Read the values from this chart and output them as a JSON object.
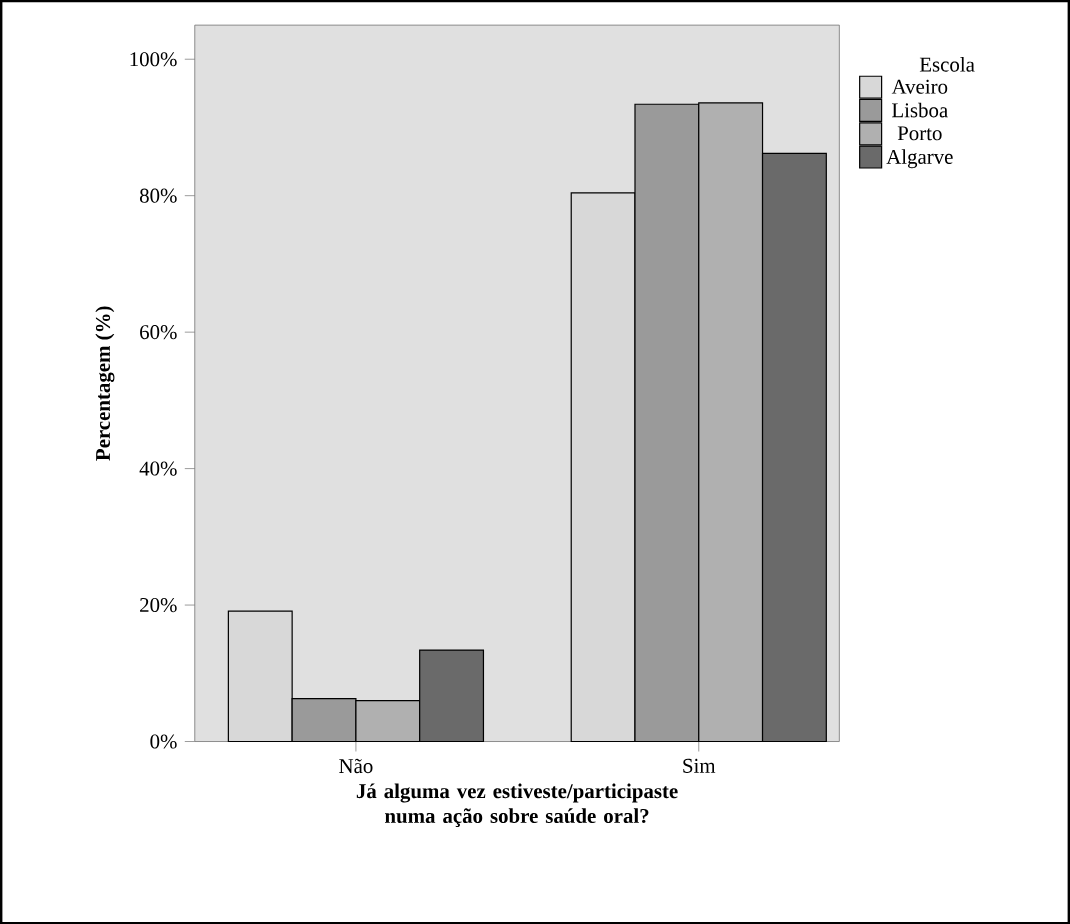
{
  "chart_data": {
    "type": "bar",
    "xlabel": "Já alguma vez estiveste/participaste numa ação sobre saúde oral?",
    "ylabel": "Percentagem (%)",
    "legend_title": "Escola",
    "categories": [
      "Não",
      "Sim"
    ],
    "series": [
      {
        "name": "Aveiro",
        "color": "#d8d8d8",
        "values": [
          19.1,
          80.4
        ]
      },
      {
        "name": "Lisboa",
        "color": "#9a9a9a",
        "values": [
          6.3,
          93.4
        ]
      },
      {
        "name": "Porto",
        "color": "#b0b0b0",
        "values": [
          6.0,
          93.6
        ]
      },
      {
        "name": "Algarve",
        "color": "#6a6a6a",
        "values": [
          13.4,
          86.2
        ]
      }
    ],
    "ylim": [
      0,
      105
    ],
    "yticks": [
      {
        "value": 0,
        "label": "0%"
      },
      {
        "value": 20,
        "label": "20%"
      },
      {
        "value": 40,
        "label": "40%"
      },
      {
        "value": 60,
        "label": "60%"
      },
      {
        "value": 80,
        "label": "80%"
      },
      {
        "value": 100,
        "label": "100%"
      }
    ],
    "grid": false,
    "legend": "right"
  }
}
